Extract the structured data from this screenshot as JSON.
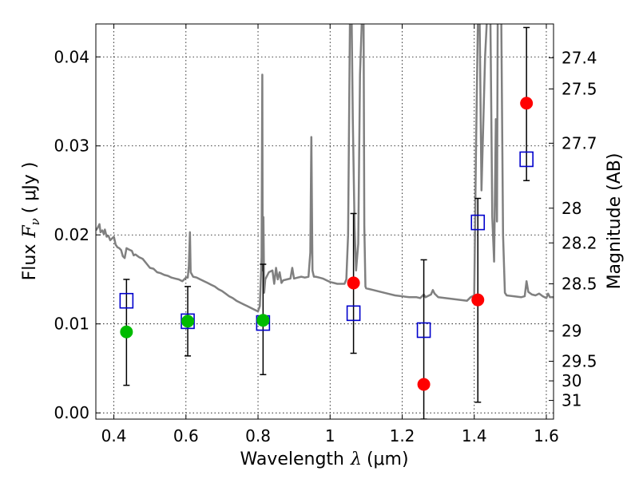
{
  "chart_data": {
    "type": "scatter",
    "title": "",
    "xlabel_text": "Wavelength",
    "xlabel_symbol": "λ",
    "xlabel_unit": "(μm)",
    "ylabel_text": "Flux",
    "ylabel_symbol": "F",
    "ylabel_subscript": "ν",
    "ylabel_unit": "( μJy )",
    "y2label": "Magnitude (AB)",
    "xlim": [
      0.35,
      1.62
    ],
    "ylim": [
      -0.0007,
      0.0437
    ],
    "grid": true,
    "xticks": [
      {
        "value": 0.4,
        "label": "0.4"
      },
      {
        "value": 0.6,
        "label": "0.6"
      },
      {
        "value": 0.8,
        "label": "0.8"
      },
      {
        "value": 1.0,
        "label": "1"
      },
      {
        "value": 1.2,
        "label": "1.2"
      },
      {
        "value": 1.4,
        "label": "1.4"
      },
      {
        "value": 1.6,
        "label": "1.6"
      }
    ],
    "yticks": [
      {
        "value": 0.0,
        "label": "0.00"
      },
      {
        "value": 0.01,
        "label": "0.01"
      },
      {
        "value": 0.02,
        "label": "0.02"
      },
      {
        "value": 0.03,
        "label": "0.03"
      },
      {
        "value": 0.04,
        "label": "0.04"
      }
    ],
    "y2ticks": [
      {
        "label": "27.4",
        "flux": 0.0399
      },
      {
        "label": "27.5",
        "flux": 0.0364
      },
      {
        "label": "27.7",
        "flux": 0.0303
      },
      {
        "label": "28",
        "flux": 0.023
      },
      {
        "label": "28.2",
        "flux": 0.0191
      },
      {
        "label": "28.5",
        "flux": 0.0145
      },
      {
        "label": "29",
        "flux": 0.0092
      },
      {
        "label": "29.5",
        "flux": 0.0058
      },
      {
        "label": "30",
        "flux": 0.0036
      },
      {
        "label": "31",
        "flux": 0.0014
      }
    ],
    "series": [
      {
        "kind": "model_spectrum",
        "color": "#808080",
        "points": [
          [
            0.35,
            0.0205
          ],
          [
            0.355,
            0.0208
          ],
          [
            0.36,
            0.0212
          ],
          [
            0.363,
            0.0203
          ],
          [
            0.368,
            0.0205
          ],
          [
            0.372,
            0.0201
          ],
          [
            0.375,
            0.0206
          ],
          [
            0.38,
            0.0198
          ],
          [
            0.385,
            0.0199
          ],
          [
            0.39,
            0.0194
          ],
          [
            0.395,
            0.0196
          ],
          [
            0.4,
            0.0198
          ],
          [
            0.405,
            0.0189
          ],
          [
            0.41,
            0.0186
          ],
          [
            0.415,
            0.0185
          ],
          [
            0.42,
            0.0183
          ],
          [
            0.425,
            0.0176
          ],
          [
            0.43,
            0.0174
          ],
          [
            0.435,
            0.0185
          ],
          [
            0.44,
            0.0184
          ],
          [
            0.445,
            0.0183
          ],
          [
            0.45,
            0.0182
          ],
          [
            0.455,
            0.0177
          ],
          [
            0.46,
            0.0178
          ],
          [
            0.47,
            0.0175
          ],
          [
            0.48,
            0.0173
          ],
          [
            0.49,
            0.0168
          ],
          [
            0.5,
            0.0163
          ],
          [
            0.51,
            0.0162
          ],
          [
            0.52,
            0.0158
          ],
          [
            0.53,
            0.0157
          ],
          [
            0.54,
            0.0155
          ],
          [
            0.55,
            0.0154
          ],
          [
            0.56,
            0.0152
          ],
          [
            0.57,
            0.0151
          ],
          [
            0.58,
            0.015
          ],
          [
            0.59,
            0.0148
          ],
          [
            0.6,
            0.0152
          ],
          [
            0.605,
            0.0152
          ],
          [
            0.608,
            0.0165
          ],
          [
            0.611,
            0.0203
          ],
          [
            0.613,
            0.0158
          ],
          [
            0.62,
            0.0153
          ],
          [
            0.63,
            0.0152
          ],
          [
            0.64,
            0.015
          ],
          [
            0.65,
            0.0148
          ],
          [
            0.66,
            0.0146
          ],
          [
            0.67,
            0.0144
          ],
          [
            0.68,
            0.0142
          ],
          [
            0.69,
            0.0139
          ],
          [
            0.7,
            0.0137
          ],
          [
            0.71,
            0.0134
          ],
          [
            0.72,
            0.0131
          ],
          [
            0.73,
            0.0129
          ],
          [
            0.74,
            0.0126
          ],
          [
            0.75,
            0.0124
          ],
          [
            0.76,
            0.0122
          ],
          [
            0.77,
            0.012
          ],
          [
            0.78,
            0.0118
          ],
          [
            0.79,
            0.0116
          ],
          [
            0.8,
            0.0114
          ],
          [
            0.805,
            0.012
          ],
          [
            0.81,
            0.0175
          ],
          [
            0.812,
            0.038
          ],
          [
            0.813,
            0.016
          ],
          [
            0.815,
            0.022
          ],
          [
            0.817,
            0.0135
          ],
          [
            0.82,
            0.015
          ],
          [
            0.83,
            0.0158
          ],
          [
            0.84,
            0.016
          ],
          [
            0.845,
            0.0145
          ],
          [
            0.85,
            0.0163
          ],
          [
            0.855,
            0.015
          ],
          [
            0.86,
            0.0158
          ],
          [
            0.865,
            0.0146
          ],
          [
            0.87,
            0.0149
          ],
          [
            0.88,
            0.015
          ],
          [
            0.89,
            0.0151
          ],
          [
            0.895,
            0.0163
          ],
          [
            0.9,
            0.0151
          ],
          [
            0.91,
            0.0152
          ],
          [
            0.92,
            0.0153
          ],
          [
            0.93,
            0.0152
          ],
          [
            0.94,
            0.0153
          ],
          [
            0.945,
            0.018
          ],
          [
            0.948,
            0.031
          ],
          [
            0.951,
            0.016
          ],
          [
            0.955,
            0.0153
          ],
          [
            0.96,
            0.0153
          ],
          [
            0.97,
            0.0152
          ],
          [
            0.98,
            0.0151
          ],
          [
            0.99,
            0.0149
          ],
          [
            1.0,
            0.0147
          ],
          [
            1.01,
            0.0146
          ],
          [
            1.02,
            0.0145
          ],
          [
            1.03,
            0.0145
          ],
          [
            1.04,
            0.0145
          ],
          [
            1.045,
            0.015
          ],
          [
            1.05,
            0.02
          ],
          [
            1.055,
            0.044
          ],
          [
            1.06,
            0.044
          ],
          [
            1.063,
            0.033
          ],
          [
            1.068,
            0.021
          ],
          [
            1.072,
            0.016
          ],
          [
            1.078,
            0.019
          ],
          [
            1.083,
            0.038
          ],
          [
            1.088,
            0.044
          ],
          [
            1.093,
            0.044
          ],
          [
            1.095,
            0.021
          ],
          [
            1.098,
            0.0142
          ],
          [
            1.1,
            0.014
          ],
          [
            1.12,
            0.0138
          ],
          [
            1.14,
            0.0136
          ],
          [
            1.16,
            0.0134
          ],
          [
            1.18,
            0.0132
          ],
          [
            1.2,
            0.0131
          ],
          [
            1.22,
            0.013
          ],
          [
            1.24,
            0.013
          ],
          [
            1.25,
            0.0129
          ],
          [
            1.26,
            0.0133
          ],
          [
            1.265,
            0.013
          ],
          [
            1.28,
            0.0133
          ],
          [
            1.285,
            0.0138
          ],
          [
            1.29,
            0.0134
          ],
          [
            1.3,
            0.013
          ],
          [
            1.32,
            0.0129
          ],
          [
            1.34,
            0.0128
          ],
          [
            1.36,
            0.0127
          ],
          [
            1.38,
            0.0126
          ],
          [
            1.39,
            0.013
          ],
          [
            1.4,
            0.0132
          ],
          [
            1.405,
            0.03
          ],
          [
            1.41,
            0.044
          ],
          [
            1.415,
            0.044
          ],
          [
            1.42,
            0.025
          ],
          [
            1.43,
            0.04
          ],
          [
            1.435,
            0.044
          ],
          [
            1.445,
            0.044
          ],
          [
            1.45,
            0.022
          ],
          [
            1.455,
            0.017
          ],
          [
            1.46,
            0.033
          ],
          [
            1.463,
            0.0215
          ],
          [
            1.465,
            0.044
          ],
          [
            1.475,
            0.044
          ],
          [
            1.48,
            0.02
          ],
          [
            1.485,
            0.0135
          ],
          [
            1.49,
            0.0132
          ],
          [
            1.51,
            0.0131
          ],
          [
            1.53,
            0.013
          ],
          [
            1.54,
            0.0131
          ],
          [
            1.545,
            0.0148
          ],
          [
            1.55,
            0.0136
          ],
          [
            1.56,
            0.0133
          ],
          [
            1.57,
            0.0132
          ],
          [
            1.58,
            0.0134
          ],
          [
            1.59,
            0.0131
          ],
          [
            1.6,
            0.0129
          ],
          [
            1.605,
            0.0134
          ],
          [
            1.61,
            0.013
          ],
          [
            1.62,
            0.013
          ]
        ]
      },
      {
        "kind": "model_points",
        "color": "#0000cc",
        "points": [
          [
            0.435,
            0.0126
          ],
          [
            0.605,
            0.0103
          ],
          [
            0.814,
            0.0101
          ],
          [
            1.065,
            0.0112
          ],
          [
            1.26,
            0.0093
          ],
          [
            1.41,
            0.0214
          ],
          [
            1.545,
            0.0285
          ]
        ]
      },
      {
        "kind": "detections",
        "color": "#00bb00",
        "points": [
          [
            0.435,
            0.0091
          ],
          [
            0.605,
            0.0103
          ],
          [
            0.814,
            0.0104
          ]
        ]
      },
      {
        "kind": "observed",
        "color": "#ff0000",
        "points": [
          [
            1.065,
            0.0146
          ],
          [
            1.26,
            0.0032
          ],
          [
            1.41,
            0.0127
          ],
          [
            1.545,
            0.0348
          ]
        ]
      },
      {
        "kind": "error_bars",
        "color": "#000000",
        "points": [
          {
            "x": 0.435,
            "low": 0.0031,
            "high": 0.015
          },
          {
            "x": 0.605,
            "low": 0.0064,
            "high": 0.0142
          },
          {
            "x": 0.814,
            "low": 0.0043,
            "high": 0.0167
          },
          {
            "x": 1.065,
            "low": 0.0067,
            "high": 0.0224
          },
          {
            "x": 1.26,
            "low": -0.0007,
            "high": 0.0172
          },
          {
            "x": 1.41,
            "low": 0.0012,
            "high": 0.0241
          },
          {
            "x": 1.545,
            "low": 0.0261,
            "high": 0.0433
          }
        ]
      }
    ]
  }
}
